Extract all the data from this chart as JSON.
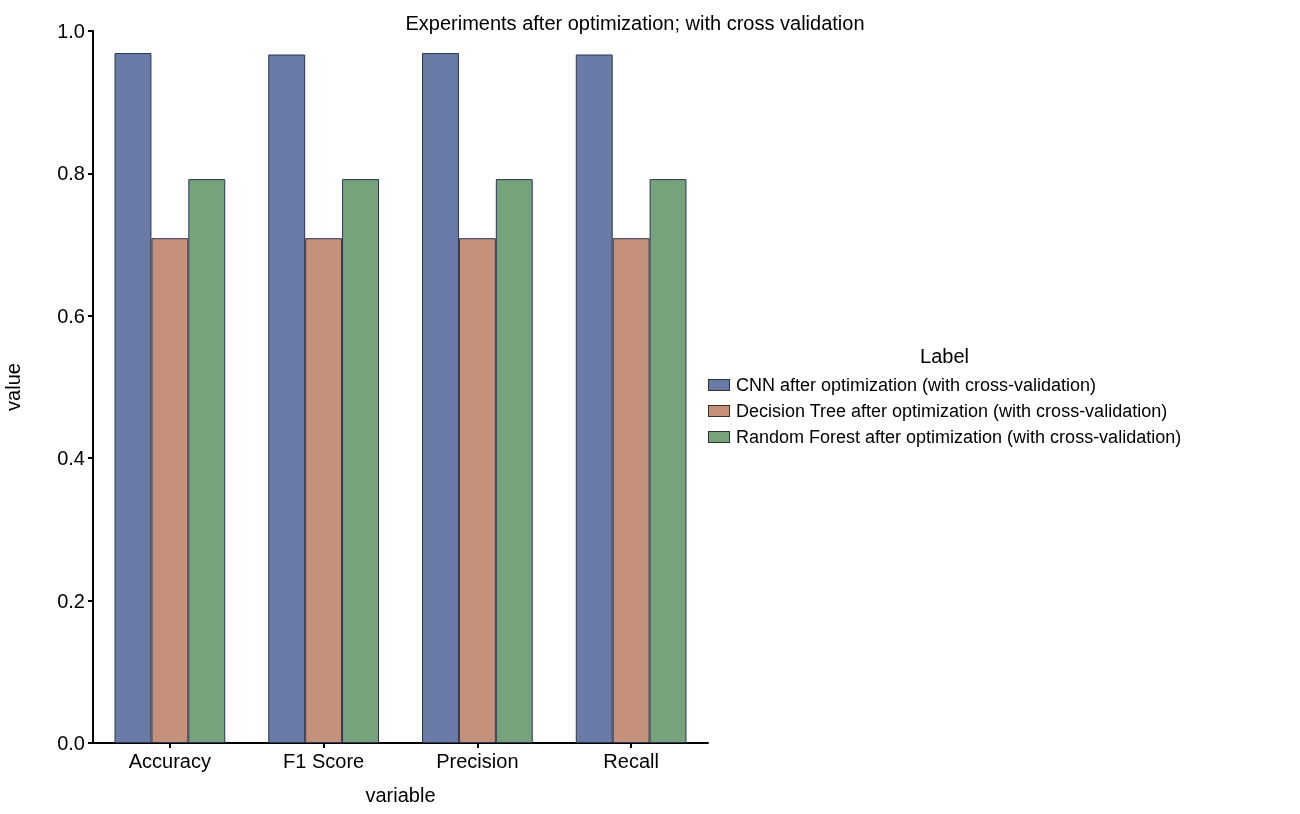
{
  "chart_data": {
    "type": "bar",
    "title": "Experiments after optimization; with cross validation",
    "xlabel": "variable",
    "ylabel": "value",
    "legend_title": "Label",
    "categories": [
      "Accuracy",
      "F1 Score",
      "Precision",
      "Recall"
    ],
    "series": [
      {
        "name": "CNN after optimization (with cross-validation)",
        "color": "#6b7ba8",
        "values": [
          0.969,
          0.967,
          0.969,
          0.967
        ]
      },
      {
        "name": "Decision Tree after optimization (with cross-validation)",
        "color": "#c4917a",
        "values": [
          0.709,
          0.709,
          0.709,
          0.709
        ]
      },
      {
        "name": "Random Forest after optimization (with cross-validation)",
        "color": "#77a37c",
        "values": [
          0.792,
          0.792,
          0.792,
          0.792
        ]
      }
    ],
    "ylim": [
      0,
      1.0
    ],
    "yticks": [
      {
        "value": 0,
        "label": "0.0"
      },
      {
        "value": 0.2,
        "label": "0.2"
      },
      {
        "value": 0.4,
        "label": "0.4"
      },
      {
        "value": 0.6,
        "label": "0.6"
      },
      {
        "value": 0.8,
        "label": "0.8"
      },
      {
        "value": 1.0,
        "label": "1.0"
      }
    ],
    "grid": false,
    "legend": "right"
  }
}
